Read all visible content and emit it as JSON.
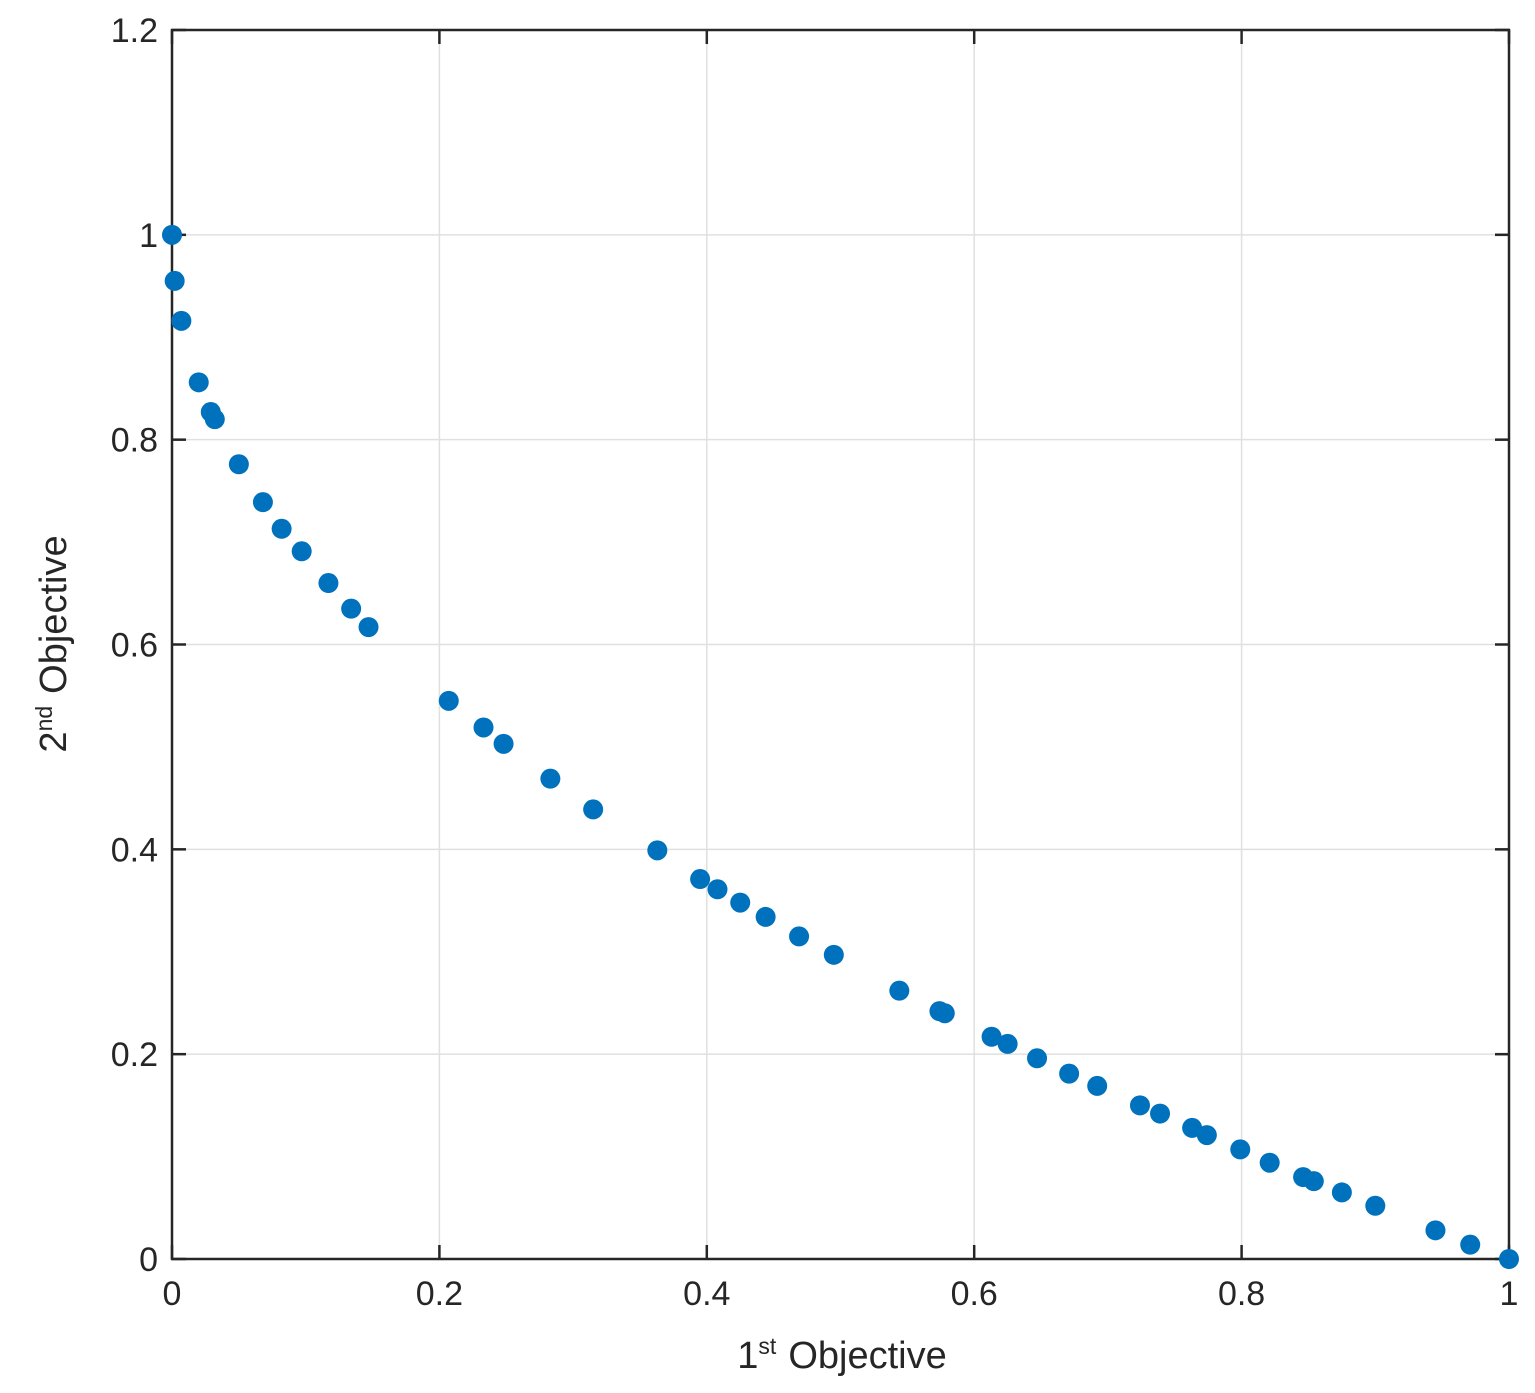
{
  "chart_data": {
    "type": "scatter",
    "marker_color": "#0072BD",
    "xlim": [
      0,
      1
    ],
    "ylim": [
      0,
      1.2
    ],
    "grid": true,
    "legend": "none",
    "x_ticks": [
      0,
      0.2,
      0.4,
      0.6,
      0.8,
      1
    ],
    "y_ticks": [
      0,
      0.2,
      0.4,
      0.6,
      0.8,
      1,
      1.2
    ],
    "x_tick_labels": [
      "0",
      "0.2",
      "0.4",
      "0.6",
      "0.8",
      "1"
    ],
    "y_tick_labels": [
      "0",
      "0.2",
      "0.4",
      "0.6",
      "0.8",
      "1",
      "1.2"
    ],
    "xlabel": {
      "base": "1",
      "sup": "st",
      "rest": "Objective"
    },
    "ylabel": {
      "base": "2",
      "sup": "nd",
      "rest": "Objective"
    },
    "points": [
      [
        0.0,
        1.0
      ],
      [
        0.002,
        0.955
      ],
      [
        0.007,
        0.916
      ],
      [
        0.02,
        0.856
      ],
      [
        0.029,
        0.827
      ],
      [
        0.032,
        0.82
      ],
      [
        0.05,
        0.776
      ],
      [
        0.068,
        0.739
      ],
      [
        0.082,
        0.713
      ],
      [
        0.097,
        0.691
      ],
      [
        0.117,
        0.66
      ],
      [
        0.134,
        0.635
      ],
      [
        0.147,
        0.617
      ],
      [
        0.207,
        0.545
      ],
      [
        0.233,
        0.519
      ],
      [
        0.248,
        0.503
      ],
      [
        0.283,
        0.469
      ],
      [
        0.315,
        0.439
      ],
      [
        0.363,
        0.399
      ],
      [
        0.395,
        0.371
      ],
      [
        0.408,
        0.361
      ],
      [
        0.425,
        0.348
      ],
      [
        0.444,
        0.334
      ],
      [
        0.469,
        0.315
      ],
      [
        0.495,
        0.297
      ],
      [
        0.544,
        0.262
      ],
      [
        0.574,
        0.242
      ],
      [
        0.578,
        0.24
      ],
      [
        0.613,
        0.217
      ],
      [
        0.625,
        0.21
      ],
      [
        0.647,
        0.196
      ],
      [
        0.671,
        0.181
      ],
      [
        0.692,
        0.169
      ],
      [
        0.724,
        0.15
      ],
      [
        0.739,
        0.142
      ],
      [
        0.763,
        0.128
      ],
      [
        0.774,
        0.121
      ],
      [
        0.799,
        0.107
      ],
      [
        0.821,
        0.094
      ],
      [
        0.846,
        0.08
      ],
      [
        0.854,
        0.076
      ],
      [
        0.875,
        0.065
      ],
      [
        0.9,
        0.052
      ],
      [
        0.945,
        0.028
      ],
      [
        0.971,
        0.014
      ],
      [
        1.0,
        0.0
      ]
    ]
  }
}
